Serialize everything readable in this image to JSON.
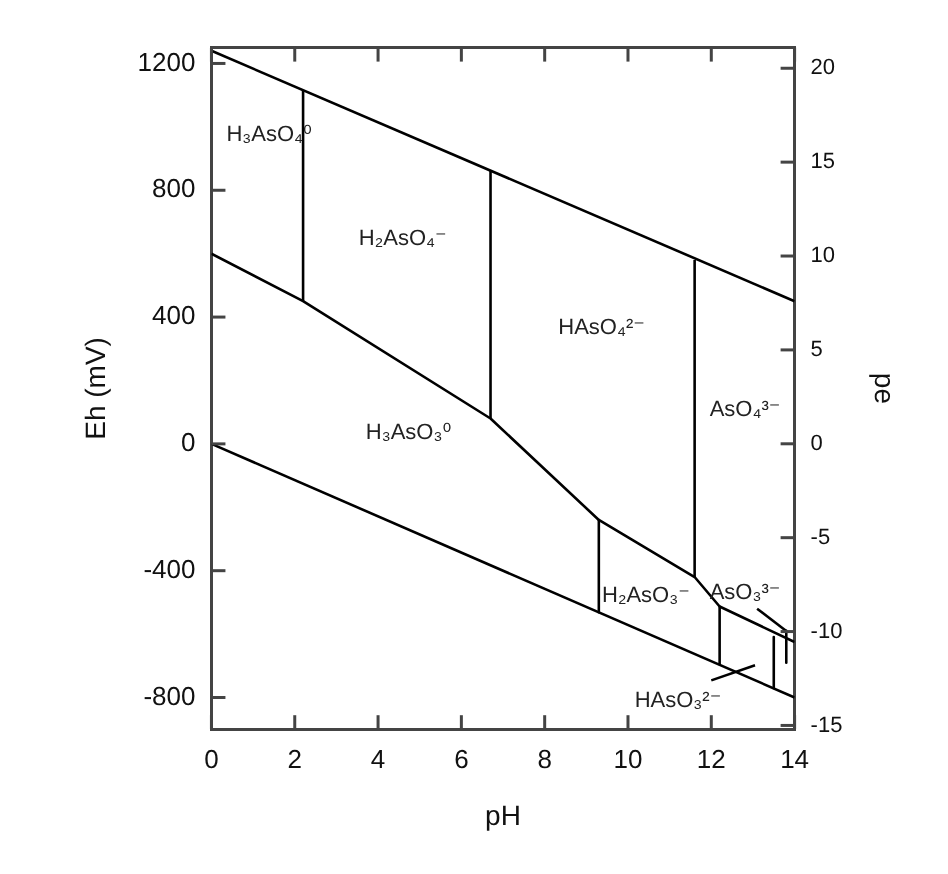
{
  "chart_data": {
    "type": "line",
    "xlabel": "pH",
    "ylabel": "Eh (mV)",
    "y2label": "pe",
    "xlim": [
      0,
      14
    ],
    "xticks": [
      0,
      2,
      4,
      6,
      8,
      10,
      12,
      14
    ],
    "ylim": [
      -900,
      1250
    ],
    "yticks": [
      -800,
      -400,
      0,
      400,
      800,
      1200
    ],
    "y2lim": [
      -15.2,
      21.1
    ],
    "y2ticks": [
      -15,
      -10,
      -5,
      0,
      5,
      10,
      15,
      20
    ],
    "grid": false,
    "legend": false,
    "marker": "none",
    "line_style": "solid",
    "series": [
      {
        "color": "#000000",
        "x": [
          0,
          14
        ],
        "values": [
          1240,
          450
        ]
      },
      {
        "color": "#000000",
        "x": [
          0,
          14
        ],
        "values": [
          0,
          -800
        ]
      },
      {
        "color": "#000000",
        "x": [
          0,
          2.2,
          6.7,
          9.3,
          11.6,
          12.2,
          14
        ],
        "values": [
          600,
          450,
          80,
          -240,
          -420,
          -513,
          -625
        ]
      },
      {
        "color": "#000000",
        "x": [
          2.2,
          2.2
        ],
        "values": [
          450,
          1116
        ]
      },
      {
        "color": "#000000",
        "x": [
          6.7,
          6.7
        ],
        "values": [
          80,
          862
        ]
      },
      {
        "color": "#000000",
        "x": [
          11.6,
          11.6
        ],
        "values": [
          -420,
          580
        ]
      },
      {
        "color": "#000000",
        "x": [
          9.3,
          9.3
        ],
        "values": [
          -240,
          -531
        ]
      },
      {
        "color": "#000000",
        "x": [
          12.2,
          12.2
        ],
        "values": [
          -513,
          -695
        ]
      },
      {
        "color": "#000000",
        "x": [
          13.5,
          13.5
        ],
        "values": [
          -609,
          -770
        ]
      },
      {
        "color": "#000000",
        "x": [
          13.8,
          13.8
        ],
        "values": [
          -590,
          -690
        ]
      },
      {
        "color": "#000000",
        "x": [
          13.1,
          13.8
        ],
        "values": [
          -520,
          -590
        ]
      },
      {
        "color": "#000000",
        "x": [
          12.0,
          13.05
        ],
        "values": [
          -746,
          -698
        ]
      }
    ],
    "annotations": [
      "H₃AsO₄⁰",
      "H₂AsO₄⁻",
      "HAsO₄²⁻",
      "AsO₄³⁻",
      "H₃AsO₃⁰",
      "H₂AsO₃⁻",
      "AsO₃³⁻",
      "HAsO₃²⁻"
    ]
  }
}
